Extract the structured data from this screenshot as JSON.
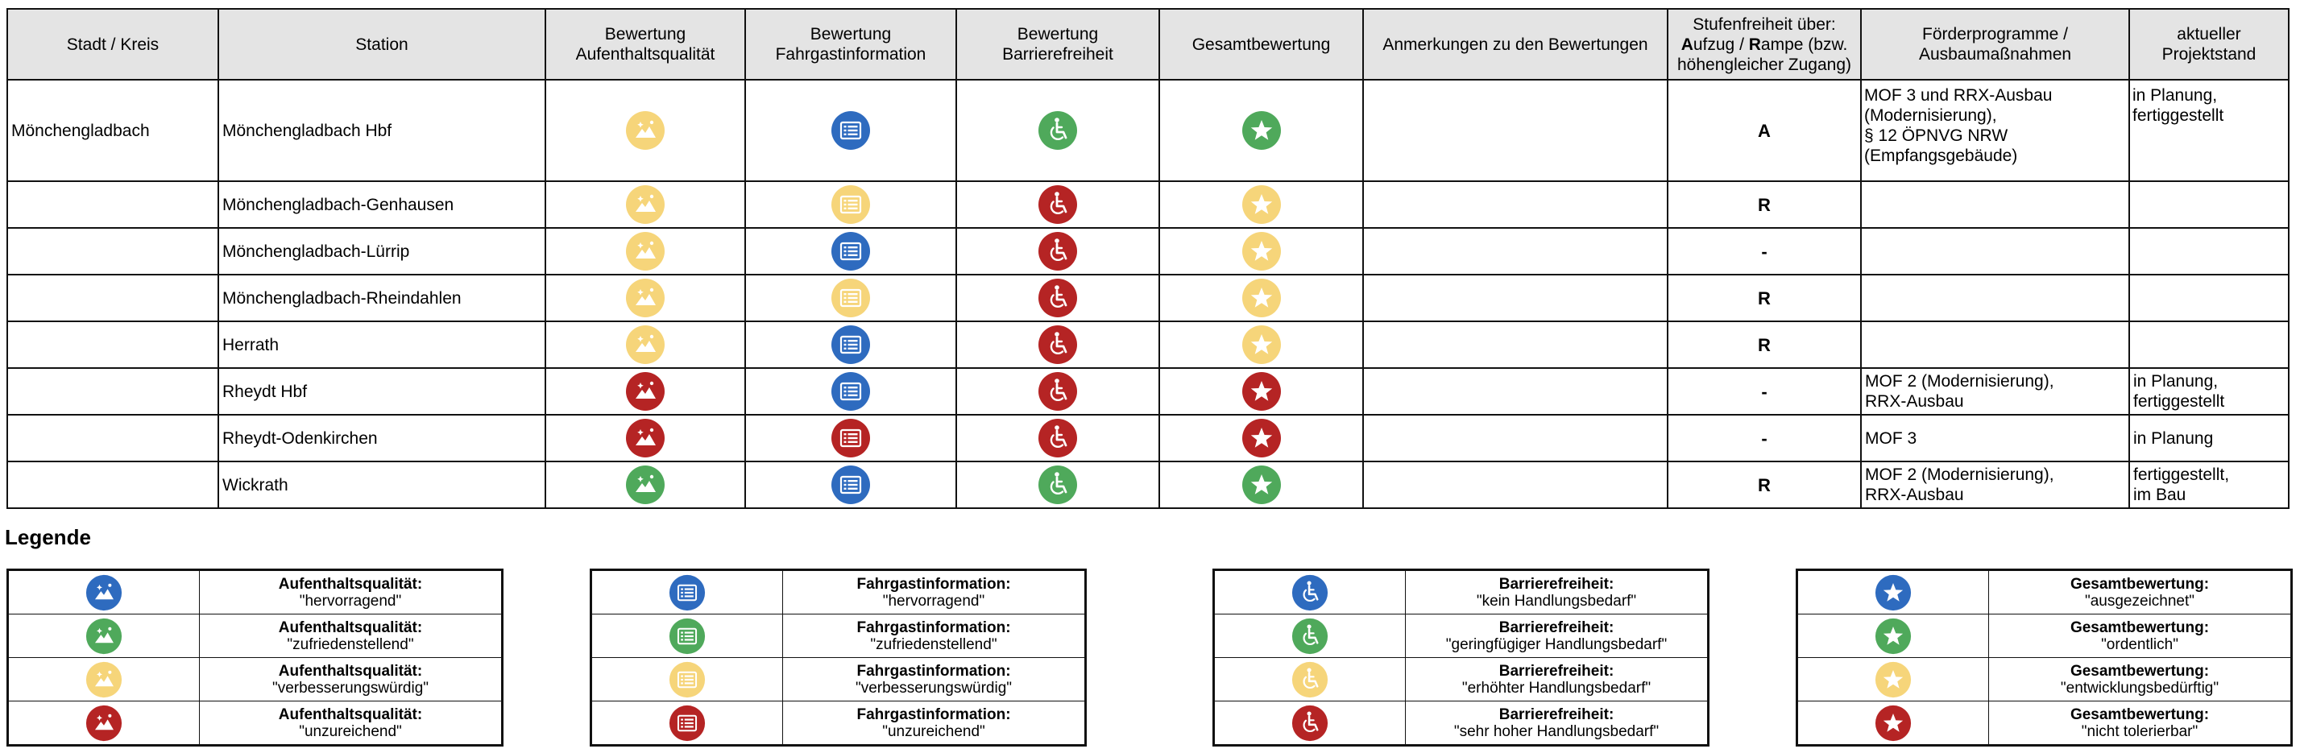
{
  "colors": {
    "blue": "#2e6bbf",
    "green": "#4fa95b",
    "yellow": "#f6d57a",
    "red": "#b52424"
  },
  "table": {
    "headers": {
      "city": "Stadt / Kreis",
      "station": "Station",
      "stay_line1": "Bewertung",
      "stay_line2": "Aufenthaltsqualität",
      "info_line1": "Bewertung",
      "info_line2": "Fahrgastinformation",
      "access_line1": "Bewertung",
      "access_line2": "Barrierefreiheit",
      "overall": "Gesamtbewertung",
      "remarks": "Anmerkungen zu den Bewertungen",
      "step_line1": "Stufenfreiheit über:",
      "step_line2_a": "A",
      "step_line2_b": "ufzug / ",
      "step_line2_c": "R",
      "step_line2_d": "ampe (bzw.",
      "step_line3": "höhengleicher Zugang)",
      "funding_line1": "Förderprogramme /",
      "funding_line2": "Ausbaumaßnahmen",
      "status_line1": "aktueller",
      "status_line2": "Projektstand"
    },
    "rows": [
      {
        "city": "Mönchengladbach",
        "station": "Mönchengladbach Hbf",
        "stay": "yellow",
        "info": "blue",
        "access": "green",
        "overall": "green",
        "remarks": "",
        "step": "A",
        "funding": [
          "MOF 3 und RRX-Ausbau",
          "(Modernisierung),",
          "§ 12 ÖPNVG NRW",
          "(Empfangsgebäude)"
        ],
        "status": [
          "in Planung,",
          "fertiggestellt"
        ]
      },
      {
        "city": "",
        "station": "Mönchengladbach-Genhausen",
        "stay": "yellow",
        "info": "yellow",
        "access": "red",
        "overall": "yellow",
        "remarks": "",
        "step": "R",
        "funding": [],
        "status": []
      },
      {
        "city": "",
        "station": "Mönchengladbach-Lürrip",
        "stay": "yellow",
        "info": "blue",
        "access": "red",
        "overall": "yellow",
        "remarks": "",
        "step": "-",
        "funding": [],
        "status": []
      },
      {
        "city": "",
        "station": "Mönchengladbach-Rheindahlen",
        "stay": "yellow",
        "info": "yellow",
        "access": "red",
        "overall": "yellow",
        "remarks": "",
        "step": "R",
        "funding": [],
        "status": []
      },
      {
        "city": "",
        "station": "Herrath",
        "stay": "yellow",
        "info": "blue",
        "access": "red",
        "overall": "yellow",
        "remarks": "",
        "step": "R",
        "funding": [],
        "status": []
      },
      {
        "city": "",
        "station": "Rheydt Hbf",
        "stay": "red",
        "info": "blue",
        "access": "red",
        "overall": "red",
        "remarks": "",
        "step": "-",
        "funding": [
          "MOF 2 (Modernisierung),",
          "RRX-Ausbau"
        ],
        "status": [
          "in Planung,",
          "fertiggestellt"
        ]
      },
      {
        "city": "",
        "station": "Rheydt-Odenkirchen",
        "stay": "red",
        "info": "red",
        "access": "red",
        "overall": "red",
        "remarks": "",
        "step": "-",
        "funding": [
          "MOF 3"
        ],
        "status": [
          "in Planung"
        ]
      },
      {
        "city": "",
        "station": "Wickrath",
        "stay": "green",
        "info": "blue",
        "access": "green",
        "overall": "green",
        "remarks": "",
        "step": "R",
        "funding": [
          "MOF 2 (Modernisierung),",
          "RRX-Ausbau"
        ],
        "status": [
          "fertiggestellt,",
          "im Bau"
        ]
      }
    ]
  },
  "legend": {
    "title": "Legende",
    "groups": [
      {
        "icon": "landscape-icon",
        "items": [
          {
            "color": "blue",
            "label": "Aufenthaltsqualität:",
            "value": "\"hervorragend\""
          },
          {
            "color": "green",
            "label": "Aufenthaltsqualität:",
            "value": "\"zufriedenstellend\""
          },
          {
            "color": "yellow",
            "label": "Aufenthaltsqualität:",
            "value": "\"verbesserungswürdig\""
          },
          {
            "color": "red",
            "label": "Aufenthaltsqualität:",
            "value": "\"unzureichend\""
          }
        ]
      },
      {
        "icon": "info-list-icon",
        "items": [
          {
            "color": "blue",
            "label": "Fahrgastinformation:",
            "value": "\"hervorragend\""
          },
          {
            "color": "green",
            "label": "Fahrgastinformation:",
            "value": "\"zufriedenstellend\""
          },
          {
            "color": "yellow",
            "label": "Fahrgastinformation:",
            "value": "\"verbesserungswürdig\""
          },
          {
            "color": "red",
            "label": "Fahrgastinformation:",
            "value": "\"unzureichend\""
          }
        ]
      },
      {
        "icon": "wheelchair-icon",
        "items": [
          {
            "color": "blue",
            "label": "Barrierefreiheit:",
            "value": "\"kein Handlungsbedarf\""
          },
          {
            "color": "green",
            "label": "Barrierefreiheit:",
            "value": "\"geringfügiger Handlungsbedarf\""
          },
          {
            "color": "yellow",
            "label": "Barrierefreiheit:",
            "value": "\"erhöhter Handlungsbedarf\""
          },
          {
            "color": "red",
            "label": "Barrierefreiheit:",
            "value": "\"sehr hoher Handlungsbedarf\""
          }
        ]
      },
      {
        "icon": "star-icon",
        "items": [
          {
            "color": "blue",
            "label": "Gesamtbewertung:",
            "value": "\"ausgezeichnet\""
          },
          {
            "color": "green",
            "label": "Gesamtbewertung:",
            "value": "\"ordentlich\""
          },
          {
            "color": "yellow",
            "label": "Gesamtbewertung:",
            "value": "\"entwicklungsbedürftig\""
          },
          {
            "color": "red",
            "label": "Gesamtbewertung:",
            "value": "\"nicht tolerierbar\""
          }
        ]
      }
    ]
  }
}
